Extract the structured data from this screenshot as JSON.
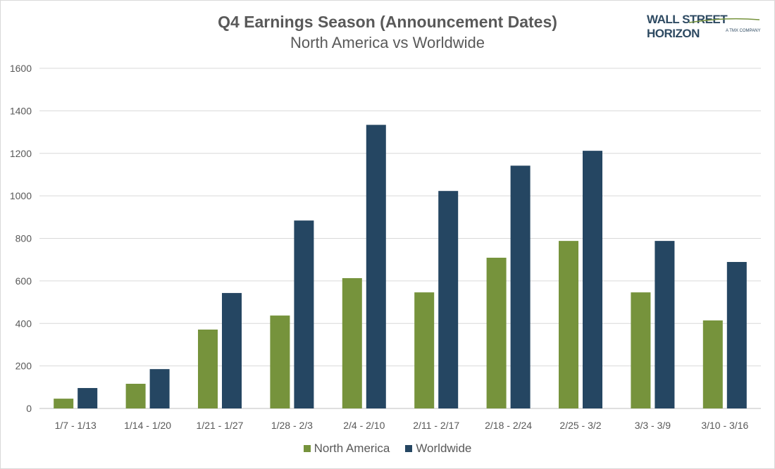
{
  "chart_data": {
    "type": "bar",
    "title": "Q4 Earnings Season (Announcement Dates)",
    "subtitle": "North America vs Worldwide",
    "logo_text": "WALL STREET HORIZON",
    "logo_subtext": "A TMX COMPANY",
    "categories": [
      "1/7 - 1/13",
      "1/14 - 1/20",
      "1/21 - 1/27",
      "1/28 - 2/3",
      "2/4 - 2/10",
      "2/11 - 2/17",
      "2/18 - 2/24",
      "2/25 - 3/2",
      "3/3 - 3/9",
      "3/10 - 3/16"
    ],
    "series": [
      {
        "name": "North America",
        "color": "#76933c",
        "values": [
          46,
          116,
          371,
          437,
          613,
          546,
          709,
          788,
          546,
          414
        ]
      },
      {
        "name": "Worldwide",
        "color": "#254662",
        "values": [
          96,
          185,
          543,
          884,
          1334,
          1023,
          1142,
          1212,
          788,
          689
        ]
      }
    ],
    "ylim": [
      0,
      1600
    ],
    "yticks": [
      0,
      200,
      400,
      600,
      800,
      1000,
      1200,
      1400,
      1600
    ],
    "grid": true,
    "legend": "bottom"
  }
}
